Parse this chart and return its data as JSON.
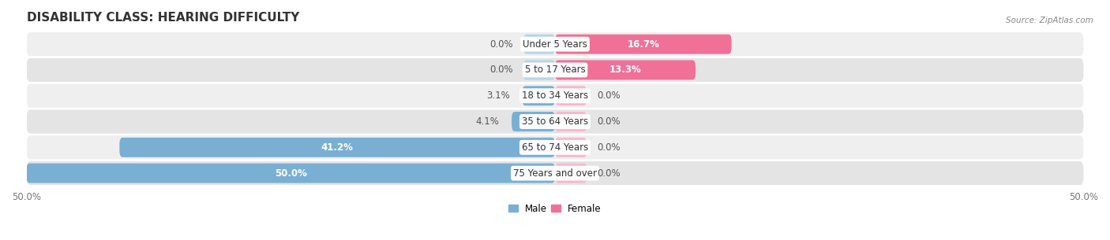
{
  "title": "DISABILITY CLASS: HEARING DIFFICULTY",
  "source": "Source: ZipAtlas.com",
  "categories": [
    "Under 5 Years",
    "5 to 17 Years",
    "18 to 34 Years",
    "35 to 64 Years",
    "65 to 74 Years",
    "75 Years and over"
  ],
  "male_values": [
    0.0,
    0.0,
    3.1,
    4.1,
    41.2,
    50.0
  ],
  "female_values": [
    16.7,
    13.3,
    0.0,
    0.0,
    0.0,
    0.0
  ],
  "male_color": "#7aafd4",
  "female_color": "#f07098",
  "female_light_color": "#f8b8cc",
  "male_light_color": "#b8d4e8",
  "row_bg_color_odd": "#efefef",
  "row_bg_color_even": "#e4e4e4",
  "max_val": 50.0,
  "title_fontsize": 11,
  "label_fontsize": 8.5,
  "tick_fontsize": 8.5,
  "figsize": [
    14.06,
    3.05
  ],
  "dpi": 100,
  "stub_size": 3.0
}
